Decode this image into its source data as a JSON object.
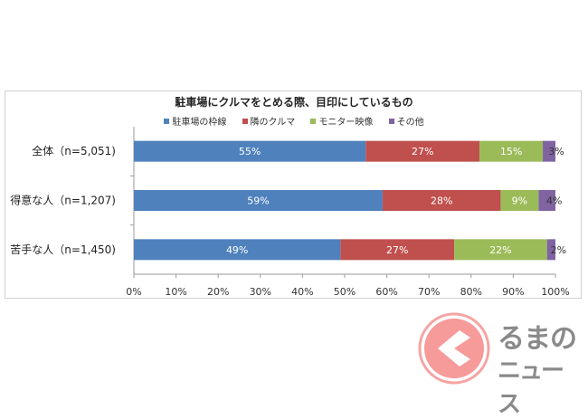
{
  "chart_data": {
    "type": "bar",
    "orientation": "horizontal-stacked",
    "title": "駐車場にクルマをとめる際、目印にしているもの",
    "categories": [
      "全体（n=5,051)",
      "得意な人（n=1,207)",
      "苦手な人（n=1,450)"
    ],
    "series": [
      {
        "name": "駐車場の枠線",
        "color": "#4f81bd",
        "values": [
          55,
          59,
          49
        ]
      },
      {
        "name": "隣のクルマ",
        "color": "#c0504d",
        "values": [
          27,
          28,
          27
        ]
      },
      {
        "name": "モニター映像",
        "color": "#9bbb59",
        "values": [
          15,
          9,
          22
        ]
      },
      {
        "name": "その他",
        "color": "#8064a2",
        "values": [
          3,
          4,
          2
        ]
      }
    ],
    "xlim": [
      0,
      100
    ],
    "xticks": [
      "0%",
      "10%",
      "20%",
      "30%",
      "40%",
      "50%",
      "60%",
      "70%",
      "80%",
      "90%",
      "100%"
    ],
    "legend": "top"
  },
  "logo": {
    "text_top": "るまの",
    "text_bottom": "ニュース"
  }
}
